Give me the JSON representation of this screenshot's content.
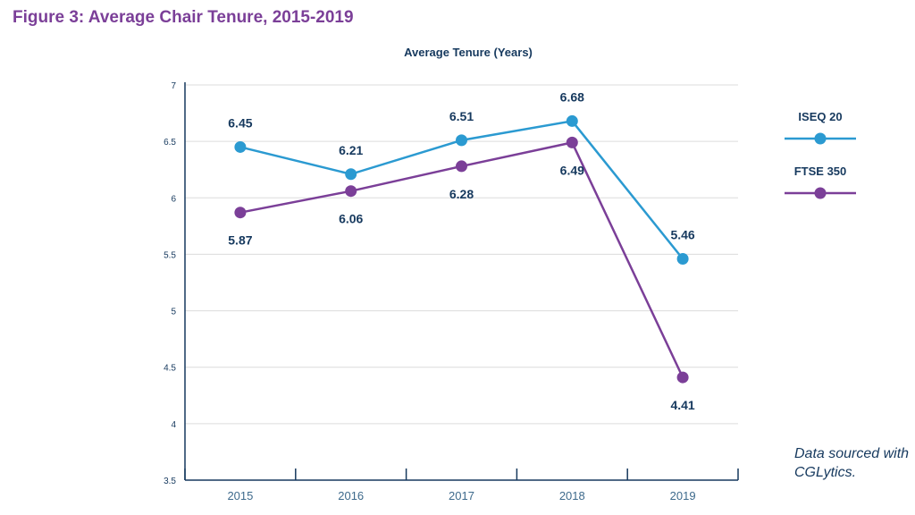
{
  "figure_title": "Figure 3: Average Chair Tenure, 2015-2019",
  "source_note": "Data sourced with CGLytics.",
  "chart_data": {
    "type": "line",
    "title": "Average Tenure (Years)",
    "xlabel": "",
    "ylabel": "",
    "categories": [
      "2015",
      "2016",
      "2017",
      "2018",
      "2019"
    ],
    "ylim": [
      3.5,
      7
    ],
    "yticks": [
      "3.5",
      "4",
      "4.5",
      "5",
      "5.5",
      "6",
      "6.5",
      "7"
    ],
    "grid": true,
    "legend_position": "right",
    "series": [
      {
        "name": "ISEQ 20",
        "color": "#2b9ad1",
        "values": [
          6.45,
          6.21,
          6.51,
          6.68,
          5.46
        ],
        "labels": [
          "6.45",
          "6.21",
          "6.51",
          "6.68",
          "5.46"
        ]
      },
      {
        "name": "FTSE 350",
        "color": "#7b3f98",
        "values": [
          5.87,
          6.06,
          6.28,
          6.49,
          4.41
        ],
        "labels": [
          "5.87",
          "6.06",
          "6.28",
          "6.49",
          "4.41"
        ]
      }
    ]
  }
}
